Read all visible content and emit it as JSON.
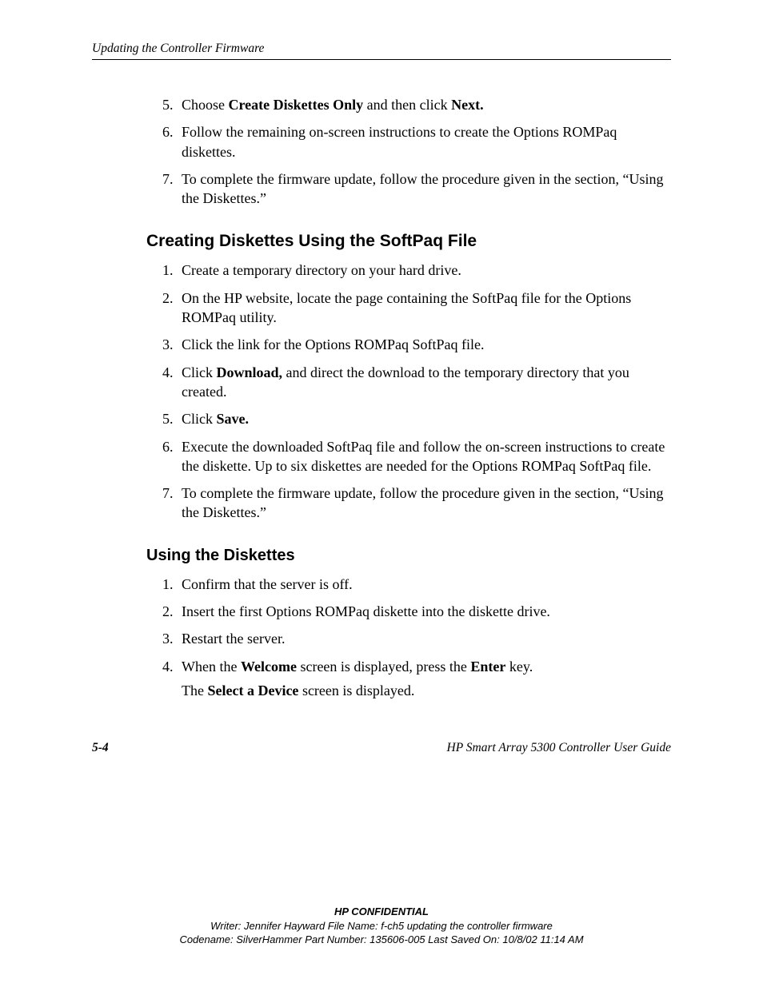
{
  "header": {
    "running_title": "Updating the Controller Firmware"
  },
  "section1": {
    "start_number": 5,
    "items": [
      {
        "segments": [
          {
            "t": "Choose "
          },
          {
            "t": "Create Diskettes Only",
            "b": true
          },
          {
            "t": " and then click "
          },
          {
            "t": "Next.",
            "b": true
          }
        ]
      },
      {
        "segments": [
          {
            "t": "Follow the remaining on-screen instructions to create the Options ROMPaq diskettes."
          }
        ]
      },
      {
        "segments": [
          {
            "t": "To complete the firmware update, follow the procedure given in the section, “Using the Diskettes.”"
          }
        ]
      }
    ]
  },
  "section2": {
    "heading": "Creating Diskettes Using the SoftPaq File",
    "items": [
      {
        "segments": [
          {
            "t": "Create a temporary directory on your hard drive."
          }
        ]
      },
      {
        "segments": [
          {
            "t": "On the HP website, locate the page containing the SoftPaq file for the Options ROMPaq utility."
          }
        ]
      },
      {
        "segments": [
          {
            "t": "Click the link for the Options ROMPaq SoftPaq file."
          }
        ]
      },
      {
        "segments": [
          {
            "t": "Click "
          },
          {
            "t": "Download,",
            "b": true
          },
          {
            "t": " and direct the download to the temporary directory that you created."
          }
        ]
      },
      {
        "segments": [
          {
            "t": "Click "
          },
          {
            "t": "Save.",
            "b": true
          }
        ]
      },
      {
        "segments": [
          {
            "t": "Execute the downloaded SoftPaq file and follow the on-screen instructions to create the diskette. Up to six diskettes are needed for the Options ROMPaq SoftPaq file."
          }
        ]
      },
      {
        "segments": [
          {
            "t": "To complete the firmware update, follow the procedure given in the section, “Using the Diskettes.”"
          }
        ]
      }
    ]
  },
  "section3": {
    "heading": "Using the Diskettes",
    "items": [
      {
        "segments": [
          {
            "t": "Confirm that the server is off."
          }
        ]
      },
      {
        "segments": [
          {
            "t": "Insert the first Options ROMPaq diskette into the diskette drive."
          }
        ]
      },
      {
        "segments": [
          {
            "t": "Restart the server."
          }
        ]
      },
      {
        "segments": [
          {
            "t": "When the "
          },
          {
            "t": "Welcome",
            "b": true
          },
          {
            "t": " screen is displayed, press the "
          },
          {
            "t": "Enter",
            "b": true
          },
          {
            "t": " key."
          }
        ],
        "post": [
          {
            "t": "The "
          },
          {
            "t": "Select a Device",
            "b": true
          },
          {
            "t": " screen is displayed."
          }
        ]
      }
    ]
  },
  "footer": {
    "page_number": "5-4",
    "doc_title": "HP Smart Array 5300 Controller User Guide",
    "confidential": "HP CONFIDENTIAL",
    "writer_line": "Writer: Jennifer Hayward File Name: f-ch5 updating the controller firmware",
    "codename_line": "Codename: SilverHammer Part Number: 135606-005 Last Saved On: 10/8/02 11:14 AM"
  }
}
